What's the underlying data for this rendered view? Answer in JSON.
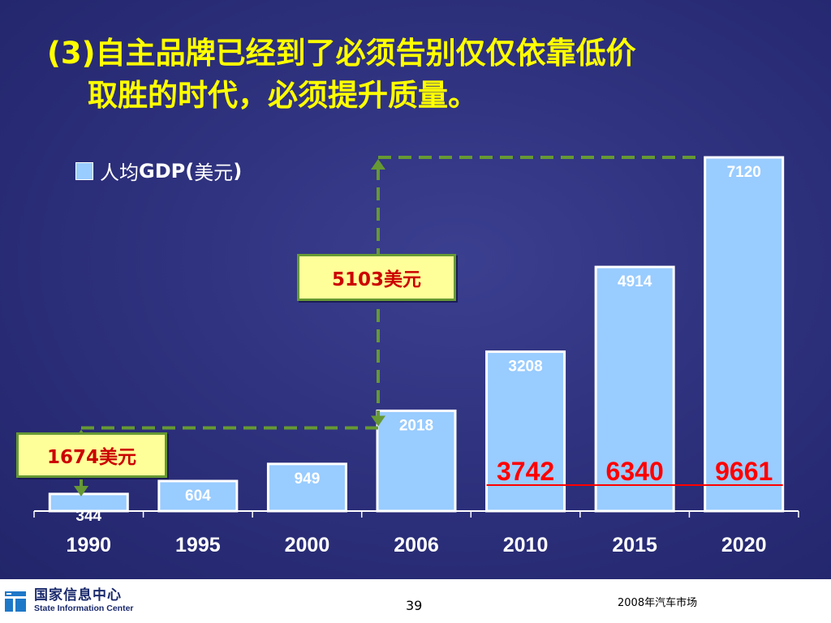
{
  "title": {
    "line1": "(3)自主品牌已经到了必须告别仅仅依靠低价",
    "line2": "取胜的时代，必须提升质量。"
  },
  "legend": {
    "prefix": "人均",
    "bold": "GDP(",
    "unit": "美元",
    "suffix": ")"
  },
  "callouts": {
    "low": "1674美元",
    "high": "5103美元"
  },
  "chart_data": {
    "type": "bar",
    "categories": [
      "1990",
      "1995",
      "2000",
      "2006",
      "2010",
      "2015",
      "2020"
    ],
    "series": [
      {
        "name": "人均GDP(美元)",
        "values": [
          344,
          604,
          949,
          2018,
          3208,
          4914,
          7120
        ]
      }
    ],
    "ylim": [
      0,
      7500
    ],
    "annotations": {
      "red_values": [
        {
          "category": "2010",
          "value": "3742"
        },
        {
          "category": "2015",
          "value": "6340"
        },
        {
          "category": "2020",
          "value": "9661"
        }
      ]
    },
    "colors": {
      "bar": "#99ccff",
      "bar_border": "#ffffff",
      "red": "#ff0000",
      "arrow": "#669933"
    }
  },
  "footer": {
    "logo_cn": "国家信息中心",
    "logo_en": "State Information Center",
    "page_number": "39",
    "right_text": "2008年汽车市场"
  }
}
